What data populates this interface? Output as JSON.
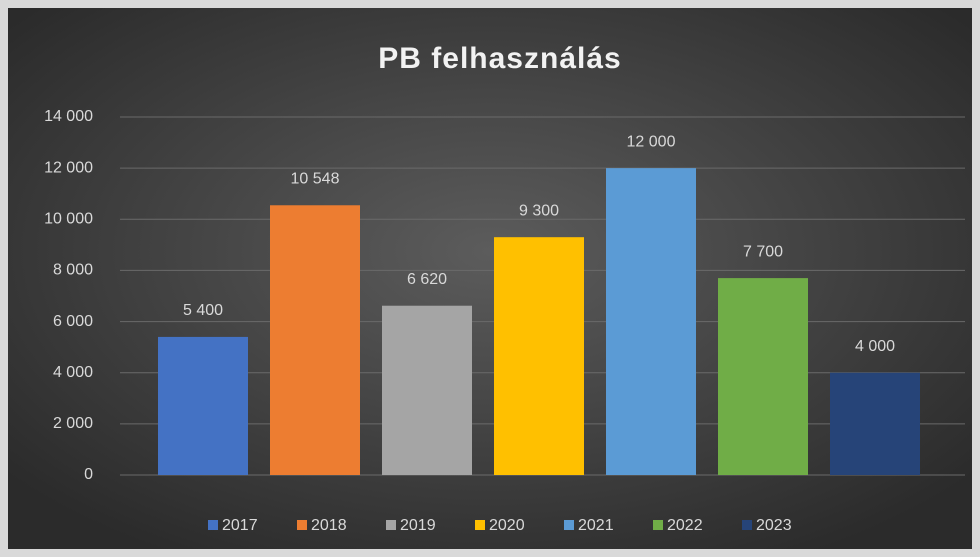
{
  "chart_data": {
    "type": "bar",
    "title": "PB felhasználás",
    "series": [
      {
        "name": "2017",
        "color": "#4472c4",
        "values": [
          5400
        ],
        "value_labels": [
          "5 400"
        ]
      },
      {
        "name": "2018",
        "color": "#ed7d31",
        "values": [
          10548
        ],
        "value_labels": [
          "10 548"
        ]
      },
      {
        "name": "2019",
        "color": "#a5a5a5",
        "values": [
          6620
        ],
        "value_labels": [
          "6 620"
        ]
      },
      {
        "name": "2020",
        "color": "#ffc000",
        "values": [
          9300
        ],
        "value_labels": [
          "9 300"
        ]
      },
      {
        "name": "2021",
        "color": "#5b9bd5",
        "values": [
          12000
        ],
        "value_labels": [
          "12 000"
        ]
      },
      {
        "name": "2022",
        "color": "#70ad47",
        "values": [
          7700
        ],
        "value_labels": [
          "7 700"
        ]
      },
      {
        "name": "2023",
        "color": "#264478",
        "values": [
          4000
        ],
        "value_labels": [
          "4 000"
        ]
      }
    ],
    "ylim": [
      0,
      14000
    ],
    "yticks": [
      0,
      {
        "value": 2000,
        "label": "2 000"
      },
      {
        "value": 4000,
        "label": "4 000"
      },
      {
        "value": 6000,
        "label": "6 000"
      },
      {
        "value": 8000,
        "label": "8 000"
      },
      {
        "value": 10000,
        "label": "10 000"
      },
      {
        "value": 12000,
        "label": "12 000"
      },
      {
        "value": 14000,
        "label": "14 000"
      }
    ],
    "grid": true,
    "legend": "bottom"
  }
}
